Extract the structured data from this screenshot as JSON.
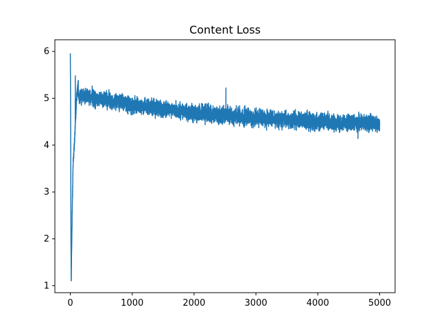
{
  "chart_data": {
    "type": "line",
    "title": "Content Loss",
    "xlabel": "",
    "ylabel": "",
    "xlim": [
      -250,
      5250
    ],
    "ylim": [
      0.85,
      6.25
    ],
    "xticks": [
      0,
      1000,
      2000,
      3000,
      4000,
      5000
    ],
    "xtick_labels": [
      "0",
      "1000",
      "2000",
      "3000",
      "4000",
      "5000"
    ],
    "yticks": [
      1,
      2,
      3,
      4,
      5,
      6
    ],
    "ytick_labels": [
      "1",
      "2",
      "3",
      "4",
      "5",
      "6"
    ],
    "grid": false,
    "series": [
      {
        "name": "content loss",
        "color": "#1f77b4",
        "num_points": 5001,
        "x_start": 0,
        "x_end": 5000,
        "initial_points": [
          {
            "x": 0,
            "y": 6.08
          },
          {
            "x": 5,
            "y": 4.5
          },
          {
            "x": 10,
            "y": 2.0
          },
          {
            "x": 14,
            "y": 1.05
          },
          {
            "x": 20,
            "y": 1.6
          },
          {
            "x": 30,
            "y": 2.6
          },
          {
            "x": 45,
            "y": 3.6
          },
          {
            "x": 60,
            "y": 3.9
          },
          {
            "x": 80,
            "y": 4.4
          },
          {
            "x": 100,
            "y": 5.0
          },
          {
            "x": 130,
            "y": 5.3
          }
        ],
        "trend": [
          {
            "x": 130,
            "y": 5.05
          },
          {
            "x": 500,
            "y": 4.98
          },
          {
            "x": 1000,
            "y": 4.87
          },
          {
            "x": 1500,
            "y": 4.77
          },
          {
            "x": 2000,
            "y": 4.69
          },
          {
            "x": 2500,
            "y": 4.63
          },
          {
            "x": 3000,
            "y": 4.58
          },
          {
            "x": 3500,
            "y": 4.54
          },
          {
            "x": 4000,
            "y": 4.51
          },
          {
            "x": 4500,
            "y": 4.48
          },
          {
            "x": 5000,
            "y": 4.46
          }
        ],
        "noise_amplitude": 0.14,
        "spikes": [
          {
            "x": 80,
            "y": 5.48
          },
          {
            "x": 2515,
            "y": 5.22
          },
          {
            "x": 4650,
            "y": 4.14
          }
        ]
      }
    ]
  }
}
